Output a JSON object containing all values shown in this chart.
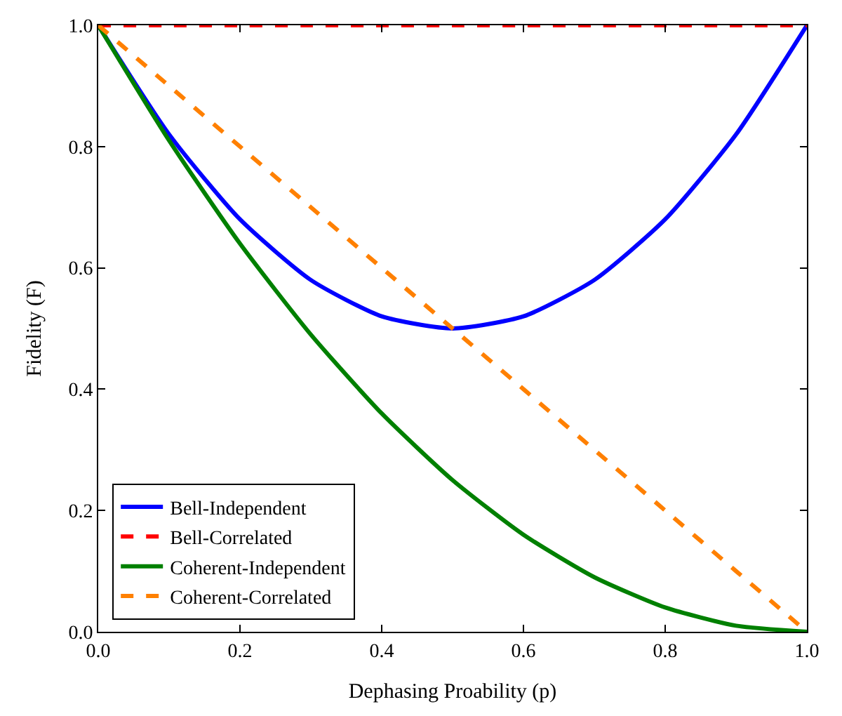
{
  "chart_data": {
    "type": "line",
    "xlabel": "Dephasing Proability (p)",
    "ylabel": "Fidelity (F)",
    "x": [
      0,
      0.1,
      0.2,
      0.3,
      0.4,
      0.5,
      0.6,
      0.7,
      0.8,
      0.9,
      1
    ],
    "series": [
      {
        "name": "Bell-Independent",
        "color": "#0000ff",
        "line_style": "solid",
        "values": [
          1,
          0.82,
          0.68,
          0.58,
          0.52,
          0.5,
          0.52,
          0.58,
          0.68,
          0.82,
          1
        ]
      },
      {
        "name": "Bell-Correlated",
        "color": "#ff0000",
        "line_style": "dashed",
        "values": [
          1,
          1,
          1,
          1,
          1,
          1,
          1,
          1,
          1,
          1,
          1
        ]
      },
      {
        "name": "Coherent-Independent",
        "color": "#008000",
        "line_style": "solid",
        "values": [
          1,
          0.81,
          0.64,
          0.49,
          0.36,
          0.25,
          0.16,
          0.09,
          0.04,
          0.01,
          0
        ]
      },
      {
        "name": "Coherent-Correlated",
        "color": "#ff8000",
        "line_style": "dashed",
        "values": [
          1,
          0.9,
          0.8,
          0.7,
          0.6,
          0.5,
          0.4,
          0.3,
          0.2,
          0.1,
          0
        ]
      }
    ],
    "xlim": [
      0,
      1
    ],
    "ylim": [
      0,
      1
    ],
    "xticks": [
      {
        "value": 0,
        "label": "0.0"
      },
      0.2,
      0.4,
      0.6,
      0.8,
      {
        "value": 1,
        "label": "1.0"
      }
    ],
    "yticks": [
      {
        "value": 0,
        "label": "0.0"
      },
      0.2,
      0.4,
      0.6,
      0.8,
      {
        "value": 1,
        "label": "1.0"
      }
    ],
    "legend": "bottom left",
    "marker": "none"
  }
}
